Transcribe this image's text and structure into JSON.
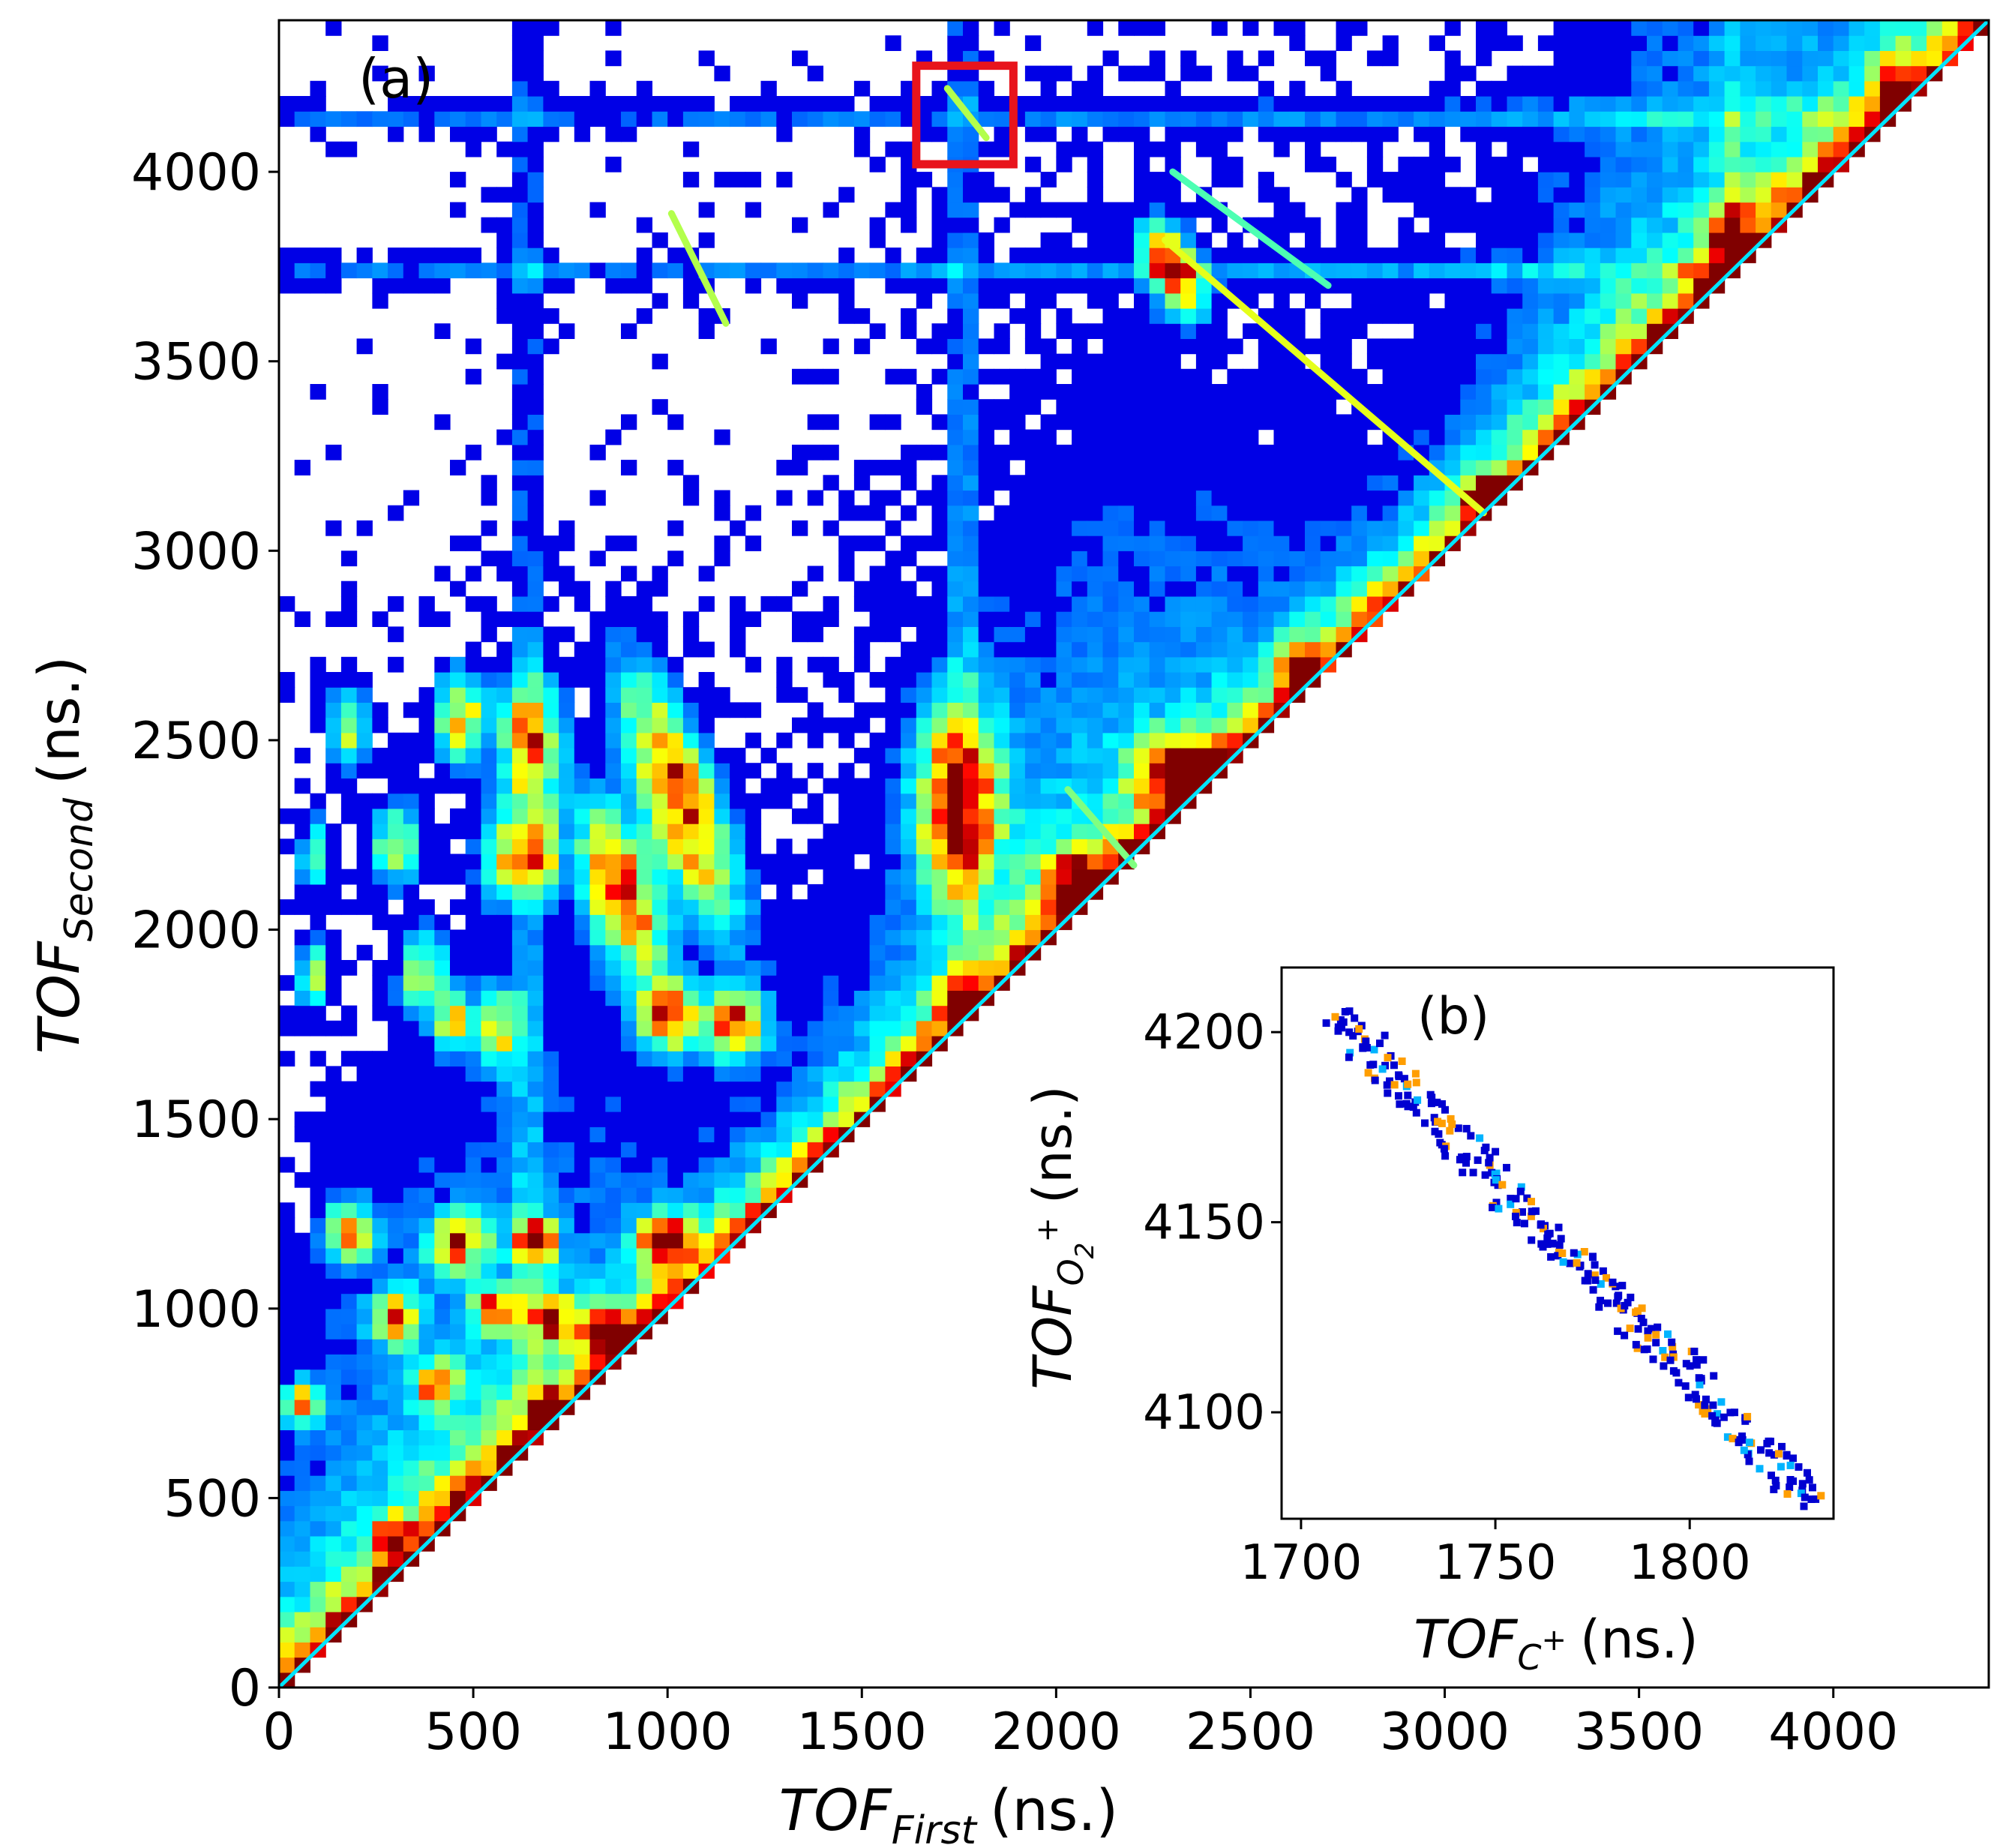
{
  "chart_data": [
    {
      "type": "heatmap",
      "panel_label": "(a)",
      "xlabel": {
        "main": "TOF",
        "sub": "First",
        "unit": "(ns.)"
      },
      "ylabel": {
        "main": "TOF",
        "sub": "Second",
        "unit": "(ns.)"
      },
      "xlim": [
        0,
        4400
      ],
      "ylim": [
        0,
        4400
      ],
      "xticks": [
        0,
        500,
        1000,
        1500,
        2000,
        2500,
        3000,
        3500,
        4000
      ],
      "yticks": [
        0,
        500,
        1000,
        1500,
        2000,
        2500,
        3000,
        3500,
        4000
      ],
      "colormap": "jet",
      "highlight_box": {
        "x": [
          1640,
          1890
        ],
        "y": [
          4020,
          4280
        ],
        "color": "#e8141c"
      },
      "islands": [
        {
          "x": 180,
          "y": 2540,
          "sx": 30,
          "sy": 70,
          "c": 0.55
        },
        {
          "x": 90,
          "y": 2200,
          "sx": 25,
          "sy": 60,
          "c": 0.4
        },
        {
          "x": 300,
          "y": 2230,
          "sx": 40,
          "sy": 70,
          "c": 0.5
        },
        {
          "x": 470,
          "y": 2560,
          "sx": 45,
          "sy": 80,
          "c": 0.6
        },
        {
          "x": 650,
          "y": 2500,
          "sx": 50,
          "sy": 110,
          "c": 0.7
        },
        {
          "x": 580,
          "y": 2200,
          "sx": 40,
          "sy": 80,
          "c": 0.55
        },
        {
          "x": 670,
          "y": 2200,
          "sx": 30,
          "sy": 80,
          "c": 0.7
        },
        {
          "x": 370,
          "y": 1880,
          "sx": 40,
          "sy": 70,
          "c": 0.5
        },
        {
          "x": 450,
          "y": 1760,
          "sx": 30,
          "sy": 50,
          "c": 0.55
        },
        {
          "x": 570,
          "y": 1740,
          "sx": 40,
          "sy": 70,
          "c": 0.5
        },
        {
          "x": 1030,
          "y": 2350,
          "sx": 60,
          "sy": 220,
          "c": 0.85,
          "r": -0.35
        },
        {
          "x": 880,
          "y": 2100,
          "sx": 60,
          "sy": 150,
          "c": 0.85,
          "r": -0.3
        },
        {
          "x": 1000,
          "y": 1780,
          "sx": 50,
          "sy": 60,
          "c": 0.85
        },
        {
          "x": 1170,
          "y": 1750,
          "sx": 50,
          "sy": 60,
          "c": 0.85
        },
        {
          "x": 1750,
          "y": 2340,
          "sx": 70,
          "sy": 160,
          "c": 0.9
        },
        {
          "x": 2050,
          "y": 2120,
          "sx": 50,
          "sy": 50,
          "c": 0.9
        },
        {
          "x": 2320,
          "y": 2420,
          "sx": 70,
          "sy": 60,
          "c": 0.95
        },
        {
          "x": 1760,
          "y": 1810,
          "sx": 40,
          "sy": 40,
          "c": 0.75
        },
        {
          "x": 180,
          "y": 1200,
          "sx": 40,
          "sy": 50,
          "c": 0.7
        },
        {
          "x": 460,
          "y": 1180,
          "sx": 50,
          "sy": 50,
          "c": 0.75
        },
        {
          "x": 660,
          "y": 1180,
          "sx": 35,
          "sy": 45,
          "c": 0.85
        },
        {
          "x": 1000,
          "y": 1180,
          "sx": 50,
          "sy": 45,
          "c": 0.9
        },
        {
          "x": 300,
          "y": 980,
          "sx": 40,
          "sy": 50,
          "c": 0.7
        },
        {
          "x": 560,
          "y": 1000,
          "sx": 40,
          "sy": 40,
          "c": 0.75
        },
        {
          "x": 700,
          "y": 980,
          "sx": 30,
          "sy": 40,
          "c": 0.85
        },
        {
          "x": 830,
          "y": 950,
          "sx": 45,
          "sy": 40,
          "c": 0.9
        },
        {
          "x": 410,
          "y": 800,
          "sx": 35,
          "sy": 40,
          "c": 0.8
        },
        {
          "x": 700,
          "y": 720,
          "sx": 30,
          "sy": 35,
          "c": 0.9
        },
        {
          "x": 290,
          "y": 400,
          "sx": 30,
          "sy": 30,
          "c": 0.7
        },
        {
          "x": 60,
          "y": 750,
          "sx": 30,
          "sy": 40,
          "c": 0.55
        },
        {
          "x": 90,
          "y": 1880,
          "sx": 25,
          "sy": 60,
          "c": 0.45
        },
        {
          "x": 2300,
          "y": 3740,
          "sx": 40,
          "sy": 80,
          "c": 0.95,
          "r": -0.4
        },
        {
          "x": 3740,
          "y": 3800,
          "sx": 35,
          "sy": 70,
          "c": 0.9
        },
        {
          "x": 4150,
          "y": 4200,
          "sx": 30,
          "sy": 60,
          "c": 0.9
        },
        {
          "x": 2620,
          "y": 2680,
          "sx": 30,
          "sy": 60,
          "c": 0.75
        },
        {
          "x": 3100,
          "y": 3150,
          "sx": 30,
          "sy": 40,
          "c": 0.8
        }
      ],
      "streaks": [
        {
          "x1": 1010,
          "y1": 3890,
          "x2": 1150,
          "y2": 3600,
          "c": 0.55
        },
        {
          "x1": 1720,
          "y1": 4220,
          "x2": 1820,
          "y2": 4090,
          "c": 0.55
        },
        {
          "x1": 2280,
          "y1": 3820,
          "x2": 3100,
          "y2": 3100,
          "c": 0.6
        },
        {
          "x1": 2300,
          "y1": 4000,
          "x2": 2700,
          "y2": 3700,
          "c": 0.45
        },
        {
          "x1": 2030,
          "y1": 2370,
          "x2": 2200,
          "y2": 2170,
          "c": 0.5
        }
      ],
      "horizontal_bands": [
        3740,
        4150
      ],
      "vertical_bands": [
        640,
        1760,
        3740,
        4150
      ]
    },
    {
      "type": "heatmap",
      "panel_label": "(b)",
      "xlabel": {
        "main": "TOF",
        "sub": "C",
        "sup": "+",
        "unit": "(ns.)"
      },
      "ylabel": {
        "main": "TOF",
        "sub": "O",
        "subsub": "2",
        "sup": "+",
        "unit": "(ns.)"
      },
      "xlim": [
        1695,
        1837
      ],
      "ylim": [
        4072,
        4217
      ],
      "xticks": [
        1700,
        1750,
        1800
      ],
      "yticks": [
        4100,
        4150,
        4200
      ],
      "colormap": "jet",
      "trace": {
        "x1": 1708,
        "y1": 4205,
        "x2": 1830,
        "y2": 4078
      }
    }
  ]
}
